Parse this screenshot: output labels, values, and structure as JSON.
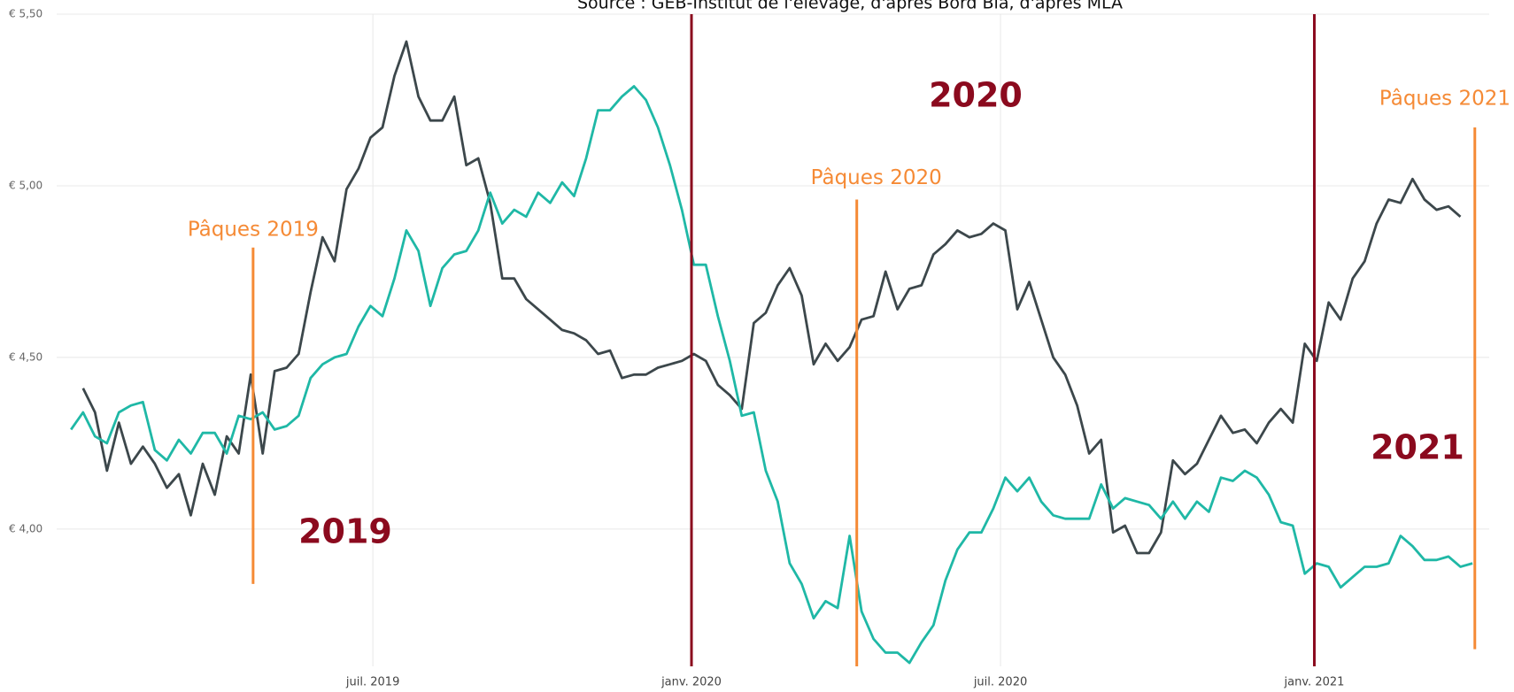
{
  "chart_data": {
    "type": "line",
    "subtitle": "Source : GEB-Institut de l'élevage, d'après Bord Bia, d'après MLA",
    "x": [
      0,
      1,
      2,
      3,
      4,
      5,
      6,
      7,
      8,
      9,
      10,
      11,
      12,
      13,
      14,
      15,
      16,
      17,
      18,
      19,
      20,
      21,
      22,
      23,
      24,
      25,
      26,
      27,
      28,
      29,
      30,
      31,
      32,
      33,
      34,
      35,
      36,
      37,
      38,
      39,
      40,
      41,
      42,
      43,
      44,
      45,
      46,
      47,
      48,
      49,
      50,
      51,
      52,
      53,
      54,
      55,
      56,
      57,
      58,
      59,
      60,
      61,
      62,
      63,
      64,
      65,
      66,
      67,
      68,
      69,
      70,
      71,
      72,
      73,
      74,
      75,
      76,
      77,
      78,
      79,
      80,
      81,
      82,
      83,
      84,
      85,
      86,
      87,
      88,
      89,
      90,
      91,
      92,
      93,
      94,
      95,
      96,
      97,
      98,
      99,
      100,
      101,
      102,
      103,
      104,
      105,
      106,
      107,
      108,
      109,
      110,
      111,
      112,
      113,
      114,
      115,
      116,
      117
    ],
    "series": [
      {
        "color": "#3c474b",
        "values": [
          null,
          4.41,
          4.34,
          4.17,
          4.31,
          4.19,
          4.24,
          4.19,
          4.12,
          4.16,
          4.04,
          4.19,
          4.1,
          4.27,
          4.22,
          4.45,
          4.22,
          4.46,
          4.47,
          4.51,
          4.69,
          4.85,
          4.78,
          4.99,
          5.05,
          5.14,
          5.17,
          5.32,
          5.42,
          5.26,
          5.19,
          5.19,
          5.26,
          5.06,
          5.08,
          4.95,
          4.73,
          4.73,
          4.67,
          4.64,
          4.61,
          4.58,
          4.57,
          4.55,
          4.51,
          4.52,
          4.44,
          4.45,
          4.45,
          4.47,
          4.48,
          4.49,
          4.51,
          4.49,
          4.42,
          4.39,
          4.35,
          4.6,
          4.63,
          4.71,
          4.76,
          4.68,
          4.48,
          4.54,
          4.49,
          4.53,
          4.61,
          4.62,
          4.75,
          4.64,
          4.7,
          4.71,
          4.8,
          4.83,
          4.87,
          4.85,
          4.86,
          4.89,
          4.87,
          4.64,
          4.72,
          4.61,
          4.5,
          4.45,
          4.36,
          4.22,
          4.26,
          3.99,
          4.01,
          3.93,
          3.93,
          3.99,
          4.2,
          4.16,
          4.19,
          4.26,
          4.33,
          4.28,
          4.29,
          4.25,
          4.31,
          4.35,
          4.31,
          4.54,
          4.49,
          4.66,
          4.61,
          4.73,
          4.78,
          4.89,
          4.96,
          4.95,
          5.02,
          4.96,
          4.93,
          4.94,
          4.91,
          null
        ]
      },
      {
        "color": "#1fb8a6",
        "values": [
          4.29,
          4.34,
          4.27,
          4.25,
          4.34,
          4.36,
          4.37,
          4.23,
          4.2,
          4.26,
          4.22,
          4.28,
          4.28,
          4.22,
          4.33,
          4.32,
          4.34,
          4.29,
          4.3,
          4.33,
          4.44,
          4.48,
          4.5,
          4.51,
          4.59,
          4.65,
          4.62,
          4.73,
          4.87,
          4.81,
          4.65,
          4.76,
          4.8,
          4.81,
          4.87,
          4.98,
          4.89,
          4.93,
          4.91,
          4.98,
          4.95,
          5.01,
          4.97,
          5.08,
          5.22,
          5.22,
          5.26,
          5.29,
          5.25,
          5.17,
          5.06,
          4.93,
          4.77,
          4.77,
          4.62,
          4.49,
          4.33,
          4.34,
          4.17,
          4.08,
          3.9,
          3.84,
          3.74,
          3.79,
          3.77,
          3.98,
          3.76,
          3.68,
          3.64,
          3.64,
          3.61,
          3.67,
          3.72,
          3.85,
          3.94,
          3.99,
          3.99,
          4.06,
          4.15,
          4.11,
          4.15,
          4.08,
          4.04,
          4.03,
          4.03,
          4.03,
          4.13,
          4.06,
          4.09,
          4.08,
          4.07,
          4.03,
          4.08,
          4.03,
          4.08,
          4.05,
          4.15,
          4.14,
          4.17,
          4.15,
          4.1,
          4.02,
          4.01,
          3.87,
          3.9,
          3.89,
          3.83,
          3.86,
          3.89,
          3.89,
          3.9,
          3.98,
          3.95,
          3.91,
          3.91,
          3.92,
          3.89,
          3.9
        ]
      }
    ],
    "xlim": [
      -1.2,
      118.4
    ],
    "xticks": [
      {
        "value": 25.2,
        "label": "juil. 2019"
      },
      {
        "value": 51.8,
        "label": "janv. 2020"
      },
      {
        "value": 77.6,
        "label": "juil. 2020"
      },
      {
        "value": 103.8,
        "label": "janv. 2021"
      }
    ],
    "ylim": [
      3.6,
      5.5
    ],
    "yticks": [
      {
        "value": 4.0,
        "label": "€ 4,00"
      },
      {
        "value": 4.5,
        "label": "€ 4,50"
      },
      {
        "value": 5.0,
        "label": "€ 5,00"
      },
      {
        "value": 5.5,
        "label": "€ 5,50"
      }
    ],
    "grid": true,
    "period_lines": {
      "color": "#8b0a1e",
      "x": [
        51.8,
        103.8
      ]
    },
    "easter_lines": {
      "color": "#f58a35",
      "items": [
        {
          "text": "Pâques 2019",
          "x": 15.2,
          "y_range": [
            3.84,
            4.82
          ]
        },
        {
          "text": "Pâques 2020",
          "x": 65.6,
          "y_range": [
            3.6,
            4.96
          ]
        },
        {
          "text": "Pâques 2021",
          "x": 117.2,
          "y_range": [
            3.65,
            5.17
          ]
        }
      ]
    },
    "year_labels": [
      "2019",
      "2020",
      "2021"
    ]
  }
}
